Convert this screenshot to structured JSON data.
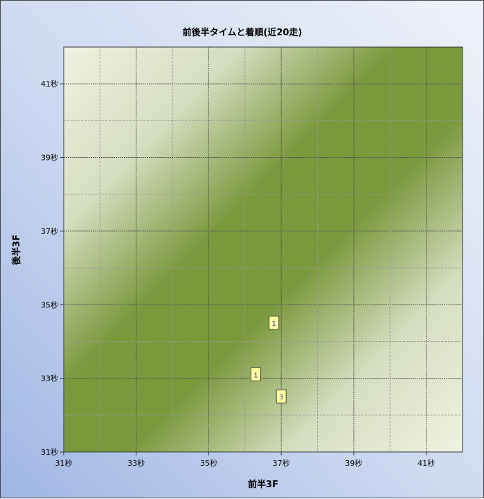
{
  "chart_data": {
    "type": "scatter",
    "title": "前後半タイムと着順(近20走)",
    "xlabel": "前半3F",
    "ylabel": "後半3F",
    "xlim": [
      31,
      42
    ],
    "ylim": [
      31,
      42
    ],
    "x_ticks": [
      "31秒",
      "33秒",
      "35秒",
      "37秒",
      "39秒",
      "41秒"
    ],
    "y_ticks": [
      "31秒",
      "33秒",
      "35秒",
      "37秒",
      "39秒",
      "41秒"
    ],
    "grid": true,
    "points": [
      {
        "x": 36.8,
        "y": 34.5,
        "label": "1"
      },
      {
        "x": 36.3,
        "y": 33.1,
        "label": "1"
      },
      {
        "x": 37.0,
        "y": 32.5,
        "label": "3"
      }
    ],
    "colors": {
      "band": "#7a983c",
      "light": "#eff3e1",
      "marker_fill": "#ffff99",
      "marker_text": "#3333cc"
    }
  }
}
